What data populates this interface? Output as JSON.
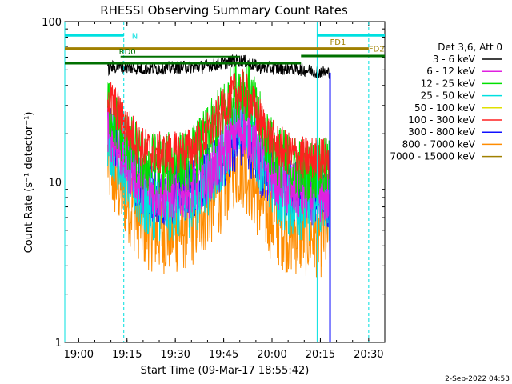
{
  "chart_data": {
    "type": "line",
    "title": "RHESSI Observing Summary Count Rates",
    "xlabel": "Start Time (09-Mar-17 18:55:42)",
    "ylabel": "Count Rate (s⁻¹ detector⁻¹)",
    "yscale": "log",
    "xlim": [
      "18:55:42",
      "20:35:00"
    ],
    "ylim": [
      1,
      100
    ],
    "x_ticks": [
      "19:00",
      "19:15",
      "19:30",
      "19:45",
      "20:00",
      "20:15",
      "20:30"
    ],
    "y_ticks": [
      "1",
      "10",
      "100"
    ],
    "legend_title": "Det 3,6, Att 0",
    "legend_position": "right",
    "timestamp": "2-Sep-2022 04:53",
    "x_time": [
      "19:09",
      "19:10",
      "19:12",
      "19:15",
      "19:18",
      "19:20",
      "19:25",
      "19:30",
      "19:35",
      "19:40",
      "19:45",
      "19:48",
      "19:51",
      "19:53",
      "19:56",
      "20:00",
      "20:05",
      "20:10",
      "20:14",
      "20:17",
      "20:18"
    ],
    "series": [
      {
        "name": "3 - 6 keV",
        "color": "#000000",
        "values": [
          50,
          52,
          52,
          52,
          51,
          51,
          51,
          52,
          52,
          53,
          55,
          57,
          57,
          55,
          52,
          51,
          51,
          50,
          49,
          48,
          48
        ]
      },
      {
        "name": "6 - 12 keV",
        "color": "#e020e0",
        "values": [
          22,
          20,
          17,
          13,
          11,
          9.5,
          8.5,
          8.5,
          9,
          11,
          15,
          20,
          22,
          20,
          15,
          11,
          9,
          8.5,
          8.5,
          8,
          8
        ]
      },
      {
        "name": "12 - 25 keV",
        "color": "#00e000",
        "values": [
          32,
          28,
          23,
          18,
          15,
          13,
          13,
          13,
          14,
          19,
          28,
          36,
          40,
          35,
          24,
          16,
          13,
          12,
          12,
          12,
          12
        ]
      },
      {
        "name": "25 - 50 keV",
        "color": "#00e0e0",
        "values": [
          20,
          18,
          15,
          11,
          9,
          7.5,
          7,
          7,
          7.5,
          10,
          15,
          21,
          26,
          22,
          15,
          9.5,
          7.5,
          7,
          7,
          7,
          7
        ]
      },
      {
        "name": "50 - 100 keV",
        "color": "#e0e000",
        "values": []
      },
      {
        "name": "100 - 300 keV",
        "color": "#ff2020",
        "values": [
          36,
          32,
          28,
          22,
          18,
          16,
          15,
          15,
          16,
          20,
          28,
          35,
          37,
          33,
          25,
          18,
          15,
          14,
          14,
          14,
          14
        ]
      },
      {
        "name": "300 - 800 keV",
        "color": "#1010ff",
        "values": [
          25,
          22,
          18,
          14,
          11,
          9.5,
          8.5,
          8.5,
          9,
          11,
          14,
          18,
          19,
          17,
          13,
          10.5,
          9,
          8.5,
          8.5,
          8,
          8
        ]
      },
      {
        "name": "800 - 7000 keV",
        "color": "#ff8c00",
        "values": [
          14,
          12,
          10,
          8,
          6.5,
          5.5,
          5,
          5,
          5.5,
          7,
          9.5,
          12.5,
          13,
          11,
          8,
          6,
          5,
          4.8,
          4.8,
          4.8,
          4.8
        ]
      },
      {
        "name": "7000 - 15000 keV",
        "color": "#a08000",
        "values": []
      }
    ],
    "annotations": {
      "night_label": "N",
      "rd0_label": "RD0",
      "fd1_label": "FD1",
      "fd2_label": "FD2",
      "night_intervals": [
        [
          "18:55:42",
          "19:14"
        ],
        [
          "20:14",
          "20:35"
        ]
      ],
      "fd_level_lines": [
        [
          "18:55:42",
          "20:30"
        ]
      ],
      "decimation_lines": [
        [
          "18:55:42",
          "20:09"
        ],
        [
          "20:09",
          "20:35"
        ]
      ],
      "rd0_lines": [
        [
          "19:13",
          "19:50"
        ]
      ],
      "vertical_cyan_solid": [
        "18:55:42",
        "20:14"
      ],
      "vertical_cyan_dashed": [
        "19:14",
        "20:30"
      ]
    }
  }
}
